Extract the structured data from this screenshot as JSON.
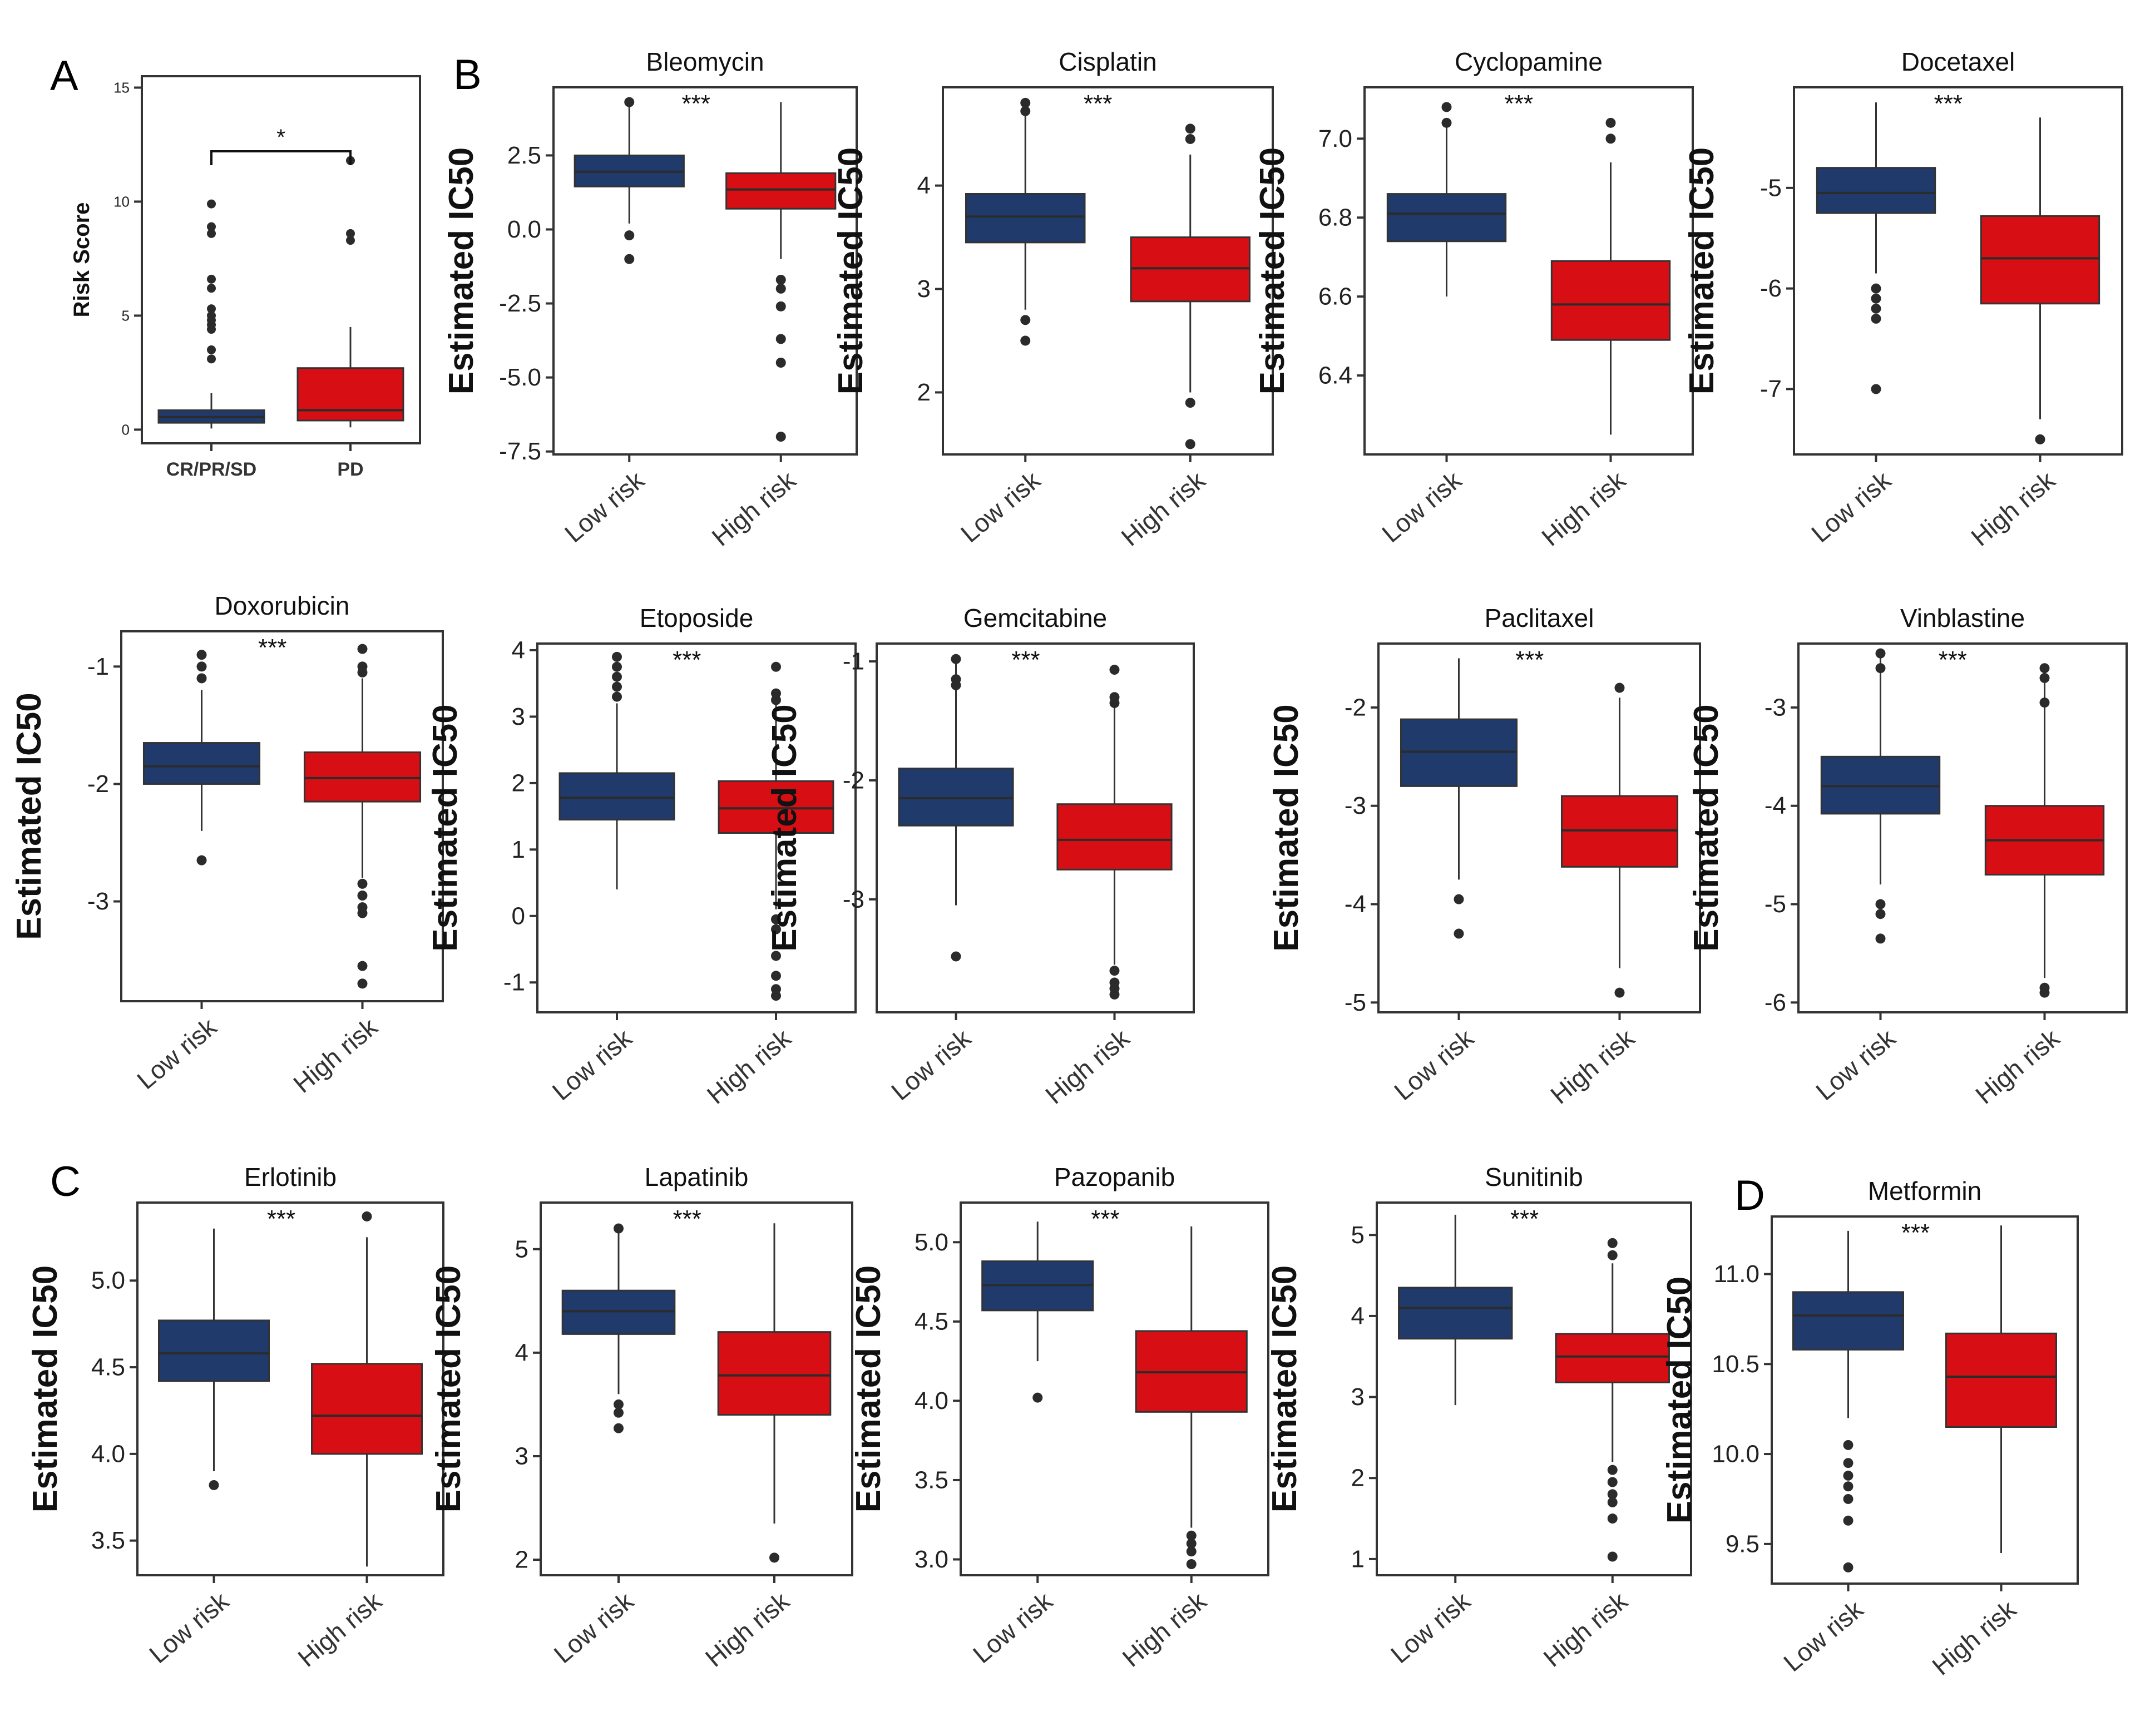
{
  "colors": {
    "low": "#1f3a6b",
    "high": "#d70f15",
    "ink": "#222222",
    "axis": "#333333"
  },
  "panels": [
    {
      "letter": "A"
    },
    {
      "letter": "B"
    },
    {
      "letter": "C"
    },
    {
      "letter": "D"
    }
  ],
  "chart_data": [
    {
      "id": "risk-score",
      "panel": "A",
      "type": "boxplot",
      "title": "",
      "ylabel": "Risk Score",
      "categories": [
        "CR/PR/SD",
        "PD"
      ],
      "significance": "*",
      "ylim": [
        -0.6,
        15.5
      ],
      "yticks": [
        0,
        5,
        10,
        15
      ],
      "tick_labels": [
        "0",
        "5",
        "10",
        "15"
      ],
      "boxes": [
        {
          "name": "CR/PR/SD",
          "q1": 0.3,
          "median": 0.55,
          "q3": 0.85,
          "whisker_low": 0.05,
          "whisker_high": 1.6,
          "outliers": [
            3.1,
            3.5,
            4.4,
            4.6,
            4.8,
            5.0,
            5.3,
            6.2,
            6.6,
            8.6,
            8.9,
            9.9
          ]
        },
        {
          "name": "PD",
          "q1": 0.4,
          "median": 0.85,
          "q3": 2.7,
          "whisker_low": 0.1,
          "whisker_high": 4.5,
          "outliers": [
            8.3,
            8.6,
            11.8
          ]
        }
      ]
    },
    {
      "id": "bleomycin",
      "panel": "B",
      "type": "boxplot",
      "title": "Bleomycin",
      "ylabel": "Estimated IC50",
      "categories": [
        "Low risk",
        "High risk"
      ],
      "significance": "***",
      "ylim": [
        -7.6,
        4.8
      ],
      "yticks": [
        2.5,
        0,
        -2.5,
        -5,
        -7.5
      ],
      "tick_labels": [
        "2.5",
        "0.0",
        "-2.5",
        "-5.0",
        "-7.5"
      ],
      "boxes": [
        {
          "name": "Low risk",
          "q1": 1.45,
          "median": 1.95,
          "q3": 2.5,
          "whisker_low": 0.2,
          "whisker_high": 4.3,
          "outliers": [
            -0.2,
            -1.0,
            4.3
          ]
        },
        {
          "name": "High risk",
          "q1": 0.7,
          "median": 1.35,
          "q3": 1.9,
          "whisker_low": -1.0,
          "whisker_high": 4.3,
          "outliers": [
            -1.7,
            -2.0,
            -2.6,
            -3.7,
            -4.5,
            -7.0
          ]
        }
      ]
    },
    {
      "id": "cisplatin",
      "panel": "B",
      "type": "boxplot",
      "title": "Cisplatin",
      "ylabel": "Estimated IC50",
      "categories": [
        "Low risk",
        "High risk"
      ],
      "significance": "***",
      "ylim": [
        1.4,
        4.95
      ],
      "yticks": [
        4,
        3,
        2
      ],
      "tick_labels": [
        "4",
        "3",
        "2"
      ],
      "boxes": [
        {
          "name": "Low risk",
          "q1": 3.45,
          "median": 3.7,
          "q3": 3.92,
          "whisker_low": 2.8,
          "whisker_high": 4.7,
          "outliers": [
            2.5,
            2.7,
            4.72,
            4.8
          ]
        },
        {
          "name": "High risk",
          "q1": 2.88,
          "median": 3.2,
          "q3": 3.5,
          "whisker_low": 2.0,
          "whisker_high": 4.3,
          "outliers": [
            1.5,
            1.9,
            4.45,
            4.55
          ]
        }
      ]
    },
    {
      "id": "cyclopamine",
      "panel": "B",
      "type": "boxplot",
      "title": "Cyclopamine",
      "ylabel": "Estimated IC50",
      "categories": [
        "Low risk",
        "High risk"
      ],
      "significance": "***",
      "ylim": [
        6.2,
        7.13
      ],
      "yticks": [
        7.0,
        6.8,
        6.6,
        6.4
      ],
      "tick_labels": [
        "7.0",
        "6.8",
        "6.6",
        "6.4"
      ],
      "boxes": [
        {
          "name": "Low risk",
          "q1": 6.74,
          "median": 6.81,
          "q3": 6.86,
          "whisker_low": 6.6,
          "whisker_high": 7.03,
          "outliers": [
            7.04,
            7.08
          ]
        },
        {
          "name": "High risk",
          "q1": 6.49,
          "median": 6.58,
          "q3": 6.69,
          "whisker_low": 6.25,
          "whisker_high": 6.94,
          "outliers": [
            7.0,
            7.04
          ]
        }
      ]
    },
    {
      "id": "docetaxel",
      "panel": "B",
      "type": "boxplot",
      "title": "Docetaxel",
      "ylabel": "Estimated IC50",
      "categories": [
        "Low risk",
        "High risk"
      ],
      "significance": "***",
      "ylim": [
        -7.65,
        -4.0
      ],
      "yticks": [
        -5,
        -6,
        -7
      ],
      "tick_labels": [
        "-5",
        "-6",
        "-7"
      ],
      "boxes": [
        {
          "name": "Low risk",
          "q1": -5.25,
          "median": -5.05,
          "q3": -4.8,
          "whisker_low": -5.85,
          "whisker_high": -4.15,
          "outliers": [
            -6.0,
            -6.1,
            -6.2,
            -6.3,
            -7.0
          ]
        },
        {
          "name": "High risk",
          "q1": -6.15,
          "median": -5.7,
          "q3": -5.28,
          "whisker_low": -7.3,
          "whisker_high": -4.3,
          "outliers": [
            -7.5
          ]
        }
      ]
    },
    {
      "id": "doxorubicin",
      "panel": "B",
      "type": "boxplot",
      "title": "Doxorubicin",
      "ylabel": "Estimated IC50",
      "categories": [
        "Low risk",
        "High risk"
      ],
      "significance": "***",
      "ylim": [
        -3.85,
        -0.7
      ],
      "yticks": [
        -1,
        -2,
        -3
      ],
      "tick_labels": [
        "-1",
        "-2",
        "-3"
      ],
      "boxes": [
        {
          "name": "Low risk",
          "q1": -2.0,
          "median": -1.85,
          "q3": -1.65,
          "whisker_low": -2.4,
          "whisker_high": -1.2,
          "outliers": [
            -0.9,
            -1.0,
            -1.1,
            -2.65
          ]
        },
        {
          "name": "High risk",
          "q1": -2.15,
          "median": -1.95,
          "q3": -1.73,
          "whisker_low": -2.8,
          "whisker_high": -1.1,
          "outliers": [
            -0.85,
            -1.0,
            -1.05,
            -2.85,
            -2.95,
            -3.05,
            -3.1,
            -3.55,
            -3.7
          ]
        }
      ]
    },
    {
      "id": "etoposide",
      "panel": "B",
      "type": "boxplot",
      "title": "Etoposide",
      "ylabel": "Estimated IC50",
      "categories": [
        "Low risk",
        "High risk"
      ],
      "significance": "***",
      "ylim": [
        -1.45,
        4.1
      ],
      "yticks": [
        4,
        3,
        2,
        1,
        0,
        -1
      ],
      "tick_labels": [
        "4",
        "3",
        "2",
        "1",
        "0",
        "-1"
      ],
      "boxes": [
        {
          "name": "Low risk",
          "q1": 1.45,
          "median": 1.78,
          "q3": 2.15,
          "whisker_low": 0.4,
          "whisker_high": 3.2,
          "outliers": [
            3.3,
            3.45,
            3.6,
            3.75,
            3.9
          ]
        },
        {
          "name": "High risk",
          "q1": 1.25,
          "median": 1.62,
          "q3": 2.03,
          "whisker_low": 0.1,
          "whisker_high": 3.2,
          "outliers": [
            3.25,
            3.35,
            3.75,
            -0.05,
            -0.2,
            -0.6,
            -0.9,
            -1.1,
            -1.2
          ]
        }
      ]
    },
    {
      "id": "gemcitabine",
      "panel": "B",
      "type": "boxplot",
      "title": "Gemcitabine",
      "ylabel": "Estimated IC50",
      "categories": [
        "Low risk",
        "High risk"
      ],
      "significance": "***",
      "ylim": [
        -3.95,
        -0.85
      ],
      "yticks": [
        -1,
        -2,
        -3
      ],
      "tick_labels": [
        "-1",
        "-2",
        "-3"
      ],
      "boxes": [
        {
          "name": "Low risk",
          "q1": -2.38,
          "median": -2.15,
          "q3": -1.9,
          "whisker_low": -3.05,
          "whisker_high": -1.0,
          "outliers": [
            -0.98,
            -1.15,
            -1.2,
            -3.48
          ]
        },
        {
          "name": "High risk",
          "q1": -2.75,
          "median": -2.5,
          "q3": -2.2,
          "whisker_low": -3.55,
          "whisker_high": -1.35,
          "outliers": [
            -1.07,
            -1.3,
            -1.35,
            -3.6,
            -3.7,
            -3.75,
            -3.8
          ]
        }
      ]
    },
    {
      "id": "paclitaxel",
      "panel": "B",
      "type": "boxplot",
      "title": "Paclitaxel",
      "ylabel": "Estimated IC50",
      "categories": [
        "Low risk",
        "High risk"
      ],
      "significance": "***",
      "ylim": [
        -5.1,
        -1.35
      ],
      "yticks": [
        -2,
        -3,
        -4,
        -5
      ],
      "tick_labels": [
        "-2",
        "-3",
        "-4",
        "-5"
      ],
      "boxes": [
        {
          "name": "Low risk",
          "q1": -2.8,
          "median": -2.45,
          "q3": -2.12,
          "whisker_low": -3.75,
          "whisker_high": -1.5,
          "outliers": [
            -3.95,
            -4.3
          ]
        },
        {
          "name": "High risk",
          "q1": -3.62,
          "median": -3.25,
          "q3": -2.9,
          "whisker_low": -4.65,
          "whisker_high": -1.9,
          "outliers": [
            -1.8,
            -4.9
          ]
        }
      ]
    },
    {
      "id": "vinblastine",
      "panel": "B",
      "type": "boxplot",
      "title": "Vinblastine",
      "ylabel": "Estimated IC50",
      "categories": [
        "Low risk",
        "High risk"
      ],
      "significance": "***",
      "ylim": [
        -6.1,
        -2.35
      ],
      "yticks": [
        -3,
        -4,
        -5,
        -6
      ],
      "tick_labels": [
        "-3",
        "-4",
        "-5",
        "-6"
      ],
      "boxes": [
        {
          "name": "Low risk",
          "q1": -4.08,
          "median": -3.8,
          "q3": -3.5,
          "whisker_low": -4.8,
          "whisker_high": -2.5,
          "outliers": [
            -2.45,
            -2.6,
            -5.0,
            -5.1,
            -5.35
          ]
        },
        {
          "name": "High risk",
          "q1": -4.7,
          "median": -4.35,
          "q3": -4.0,
          "whisker_low": -5.75,
          "whisker_high": -2.7,
          "outliers": [
            -2.6,
            -2.7,
            -2.95,
            -5.85,
            -5.9
          ]
        }
      ]
    },
    {
      "id": "erlotinib",
      "panel": "C",
      "type": "boxplot",
      "title": "Erlotinib",
      "ylabel": "Estimated IC50",
      "categories": [
        "Low risk",
        "High risk"
      ],
      "significance": "***",
      "ylim": [
        3.3,
        5.45
      ],
      "yticks": [
        5.0,
        4.5,
        4.0,
        3.5
      ],
      "tick_labels": [
        "5.0",
        "4.5",
        "4.0",
        "3.5"
      ],
      "boxes": [
        {
          "name": "Low risk",
          "q1": 4.42,
          "median": 4.58,
          "q3": 4.77,
          "whisker_low": 3.9,
          "whisker_high": 5.3,
          "outliers": [
            3.82
          ]
        },
        {
          "name": "High risk",
          "q1": 4.0,
          "median": 4.22,
          "q3": 4.52,
          "whisker_low": 3.35,
          "whisker_high": 5.25,
          "outliers": [
            5.37
          ]
        }
      ]
    },
    {
      "id": "lapatinib",
      "panel": "C",
      "type": "boxplot",
      "title": "Lapatinib",
      "ylabel": "Estimated IC50",
      "categories": [
        "Low risk",
        "High risk"
      ],
      "significance": "***",
      "ylim": [
        1.85,
        5.45
      ],
      "yticks": [
        5,
        4,
        3,
        2
      ],
      "tick_labels": [
        "5",
        "4",
        "3",
        "2"
      ],
      "boxes": [
        {
          "name": "Low risk",
          "q1": 4.18,
          "median": 4.4,
          "q3": 4.6,
          "whisker_low": 3.6,
          "whisker_high": 5.2,
          "outliers": [
            3.27,
            3.42,
            3.5,
            5.2
          ]
        },
        {
          "name": "High risk",
          "q1": 3.4,
          "median": 3.78,
          "q3": 4.2,
          "whisker_low": 2.35,
          "whisker_high": 5.25,
          "outliers": [
            2.02
          ]
        }
      ]
    },
    {
      "id": "pazopanib",
      "panel": "C",
      "type": "boxplot",
      "title": "Pazopanib",
      "ylabel": "Estimated IC50",
      "categories": [
        "Low risk",
        "High risk"
      ],
      "significance": "***",
      "ylim": [
        2.9,
        5.25
      ],
      "yticks": [
        5.0,
        4.5,
        4.0,
        3.5,
        3.0
      ],
      "tick_labels": [
        "5.0",
        "4.5",
        "4.0",
        "3.5",
        "3.0"
      ],
      "boxes": [
        {
          "name": "Low risk",
          "q1": 4.57,
          "median": 4.73,
          "q3": 4.88,
          "whisker_low": 4.25,
          "whisker_high": 5.13,
          "outliers": [
            4.02
          ]
        },
        {
          "name": "High risk",
          "q1": 3.93,
          "median": 4.18,
          "q3": 4.44,
          "whisker_low": 3.2,
          "whisker_high": 5.1,
          "outliers": [
            2.97,
            3.05,
            3.1,
            3.15
          ]
        }
      ]
    },
    {
      "id": "sunitinib",
      "panel": "C",
      "type": "boxplot",
      "title": "Sunitinib",
      "ylabel": "Estimated IC50",
      "categories": [
        "Low risk",
        "High risk"
      ],
      "significance": "***",
      "ylim": [
        0.8,
        5.4
      ],
      "yticks": [
        5,
        4,
        3,
        2,
        1
      ],
      "tick_labels": [
        "5",
        "4",
        "3",
        "2",
        "1"
      ],
      "boxes": [
        {
          "name": "Low risk",
          "q1": 3.72,
          "median": 4.1,
          "q3": 4.35,
          "whisker_low": 2.9,
          "whisker_high": 5.25,
          "outliers": []
        },
        {
          "name": "High risk",
          "q1": 3.18,
          "median": 3.5,
          "q3": 3.78,
          "whisker_low": 2.2,
          "whisker_high": 4.65,
          "outliers": [
            4.75,
            4.9,
            2.1,
            1.95,
            1.8,
            1.7,
            1.5,
            1.03
          ]
        }
      ]
    },
    {
      "id": "metformin",
      "panel": "D",
      "type": "boxplot",
      "title": "Metformin",
      "ylabel": "Estimated IC50",
      "categories": [
        "Low risk",
        "High risk"
      ],
      "significance": "***",
      "ylim": [
        9.28,
        11.32
      ],
      "yticks": [
        11.0,
        10.5,
        10.0,
        9.5
      ],
      "tick_labels": [
        "11.0",
        "10.5",
        "10.0",
        "9.5"
      ],
      "boxes": [
        {
          "name": "Low risk",
          "q1": 10.58,
          "median": 10.77,
          "q3": 10.9,
          "whisker_low": 10.2,
          "whisker_high": 11.24,
          "outliers": [
            10.05,
            9.95,
            9.88,
            9.82,
            9.75,
            9.63,
            9.37
          ]
        },
        {
          "name": "High risk",
          "q1": 10.15,
          "median": 10.43,
          "q3": 10.67,
          "whisker_low": 9.45,
          "whisker_high": 11.27,
          "outliers": []
        }
      ]
    }
  ]
}
